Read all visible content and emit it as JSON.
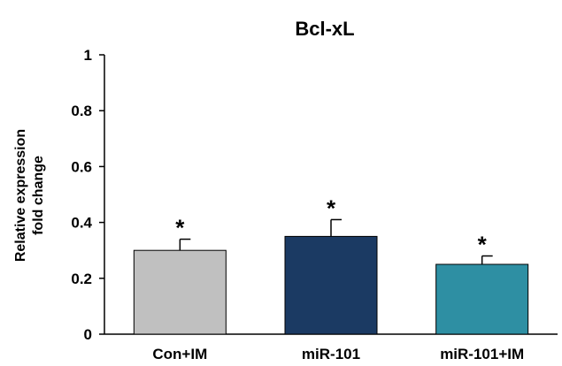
{
  "chart_data": {
    "type": "bar",
    "title": "Bcl-xL",
    "ylabel_lines": [
      "Relative expression",
      "fold change"
    ],
    "xlabel": "",
    "ylim": [
      0,
      1
    ],
    "yticks": [
      0,
      0.2,
      0.4,
      0.6,
      0.8,
      1
    ],
    "ytick_labels": [
      "0",
      "0.2",
      "0.4",
      "0.6",
      "0.8",
      "1"
    ],
    "categories": [
      "Con+IM",
      "miR-101",
      "miR-101+IM"
    ],
    "values": [
      0.3,
      0.35,
      0.25
    ],
    "error_upper": [
      0.04,
      0.06,
      0.03
    ],
    "significance": [
      "*",
      "*",
      "*"
    ],
    "colors": [
      "#c0c0c0",
      "#1b3a63",
      "#2e8fa3"
    ],
    "grid": false,
    "legend": "none"
  }
}
